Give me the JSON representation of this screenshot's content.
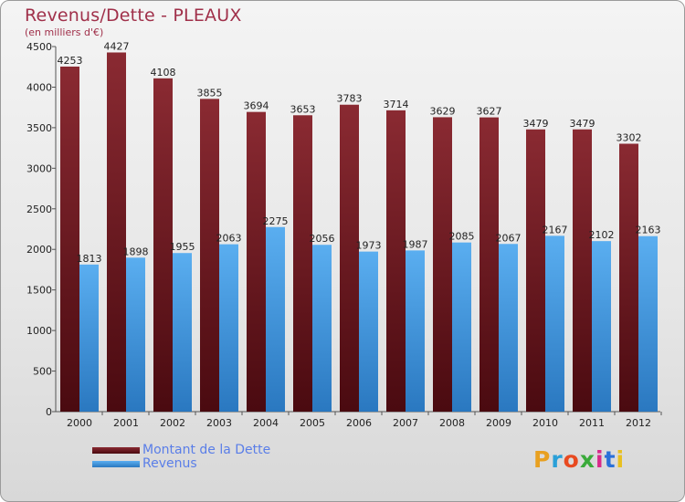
{
  "chart_data": {
    "type": "bar",
    "title": "Revenus/Dette - PLEAUX",
    "subtitle": "(en milliers d'€)",
    "xlabel": "",
    "ylabel": "",
    "ylim": [
      0,
      4500
    ],
    "yticks": [
      0,
      500,
      1000,
      1500,
      2000,
      2500,
      3000,
      3500,
      4000,
      4500
    ],
    "categories": [
      "2000",
      "2001",
      "2002",
      "2003",
      "2004",
      "2005",
      "2006",
      "2007",
      "2008",
      "2009",
      "2010",
      "2011",
      "2012"
    ],
    "series": [
      {
        "name": "Montant de la Dette",
        "color": "#7a1f26",
        "values": [
          4253,
          4427,
          4108,
          3855,
          3694,
          3653,
          3783,
          3714,
          3629,
          3627,
          3479,
          3479,
          3302
        ]
      },
      {
        "name": "Revenus",
        "color": "#4a9ee0",
        "values": [
          1813,
          1898,
          1955,
          2063,
          2275,
          2056,
          1973,
          1987,
          2085,
          2067,
          2167,
          2102,
          2163
        ]
      }
    ],
    "legend_position": "bottom-left",
    "grid": false,
    "data_labels": true
  },
  "logo": {
    "text": "Proxiti",
    "colors": [
      "#e8a020",
      "#2aa0d8",
      "#e84a20",
      "#3aaa3a",
      "#d82a8a",
      "#2a70d8",
      "#e8c020"
    ]
  }
}
